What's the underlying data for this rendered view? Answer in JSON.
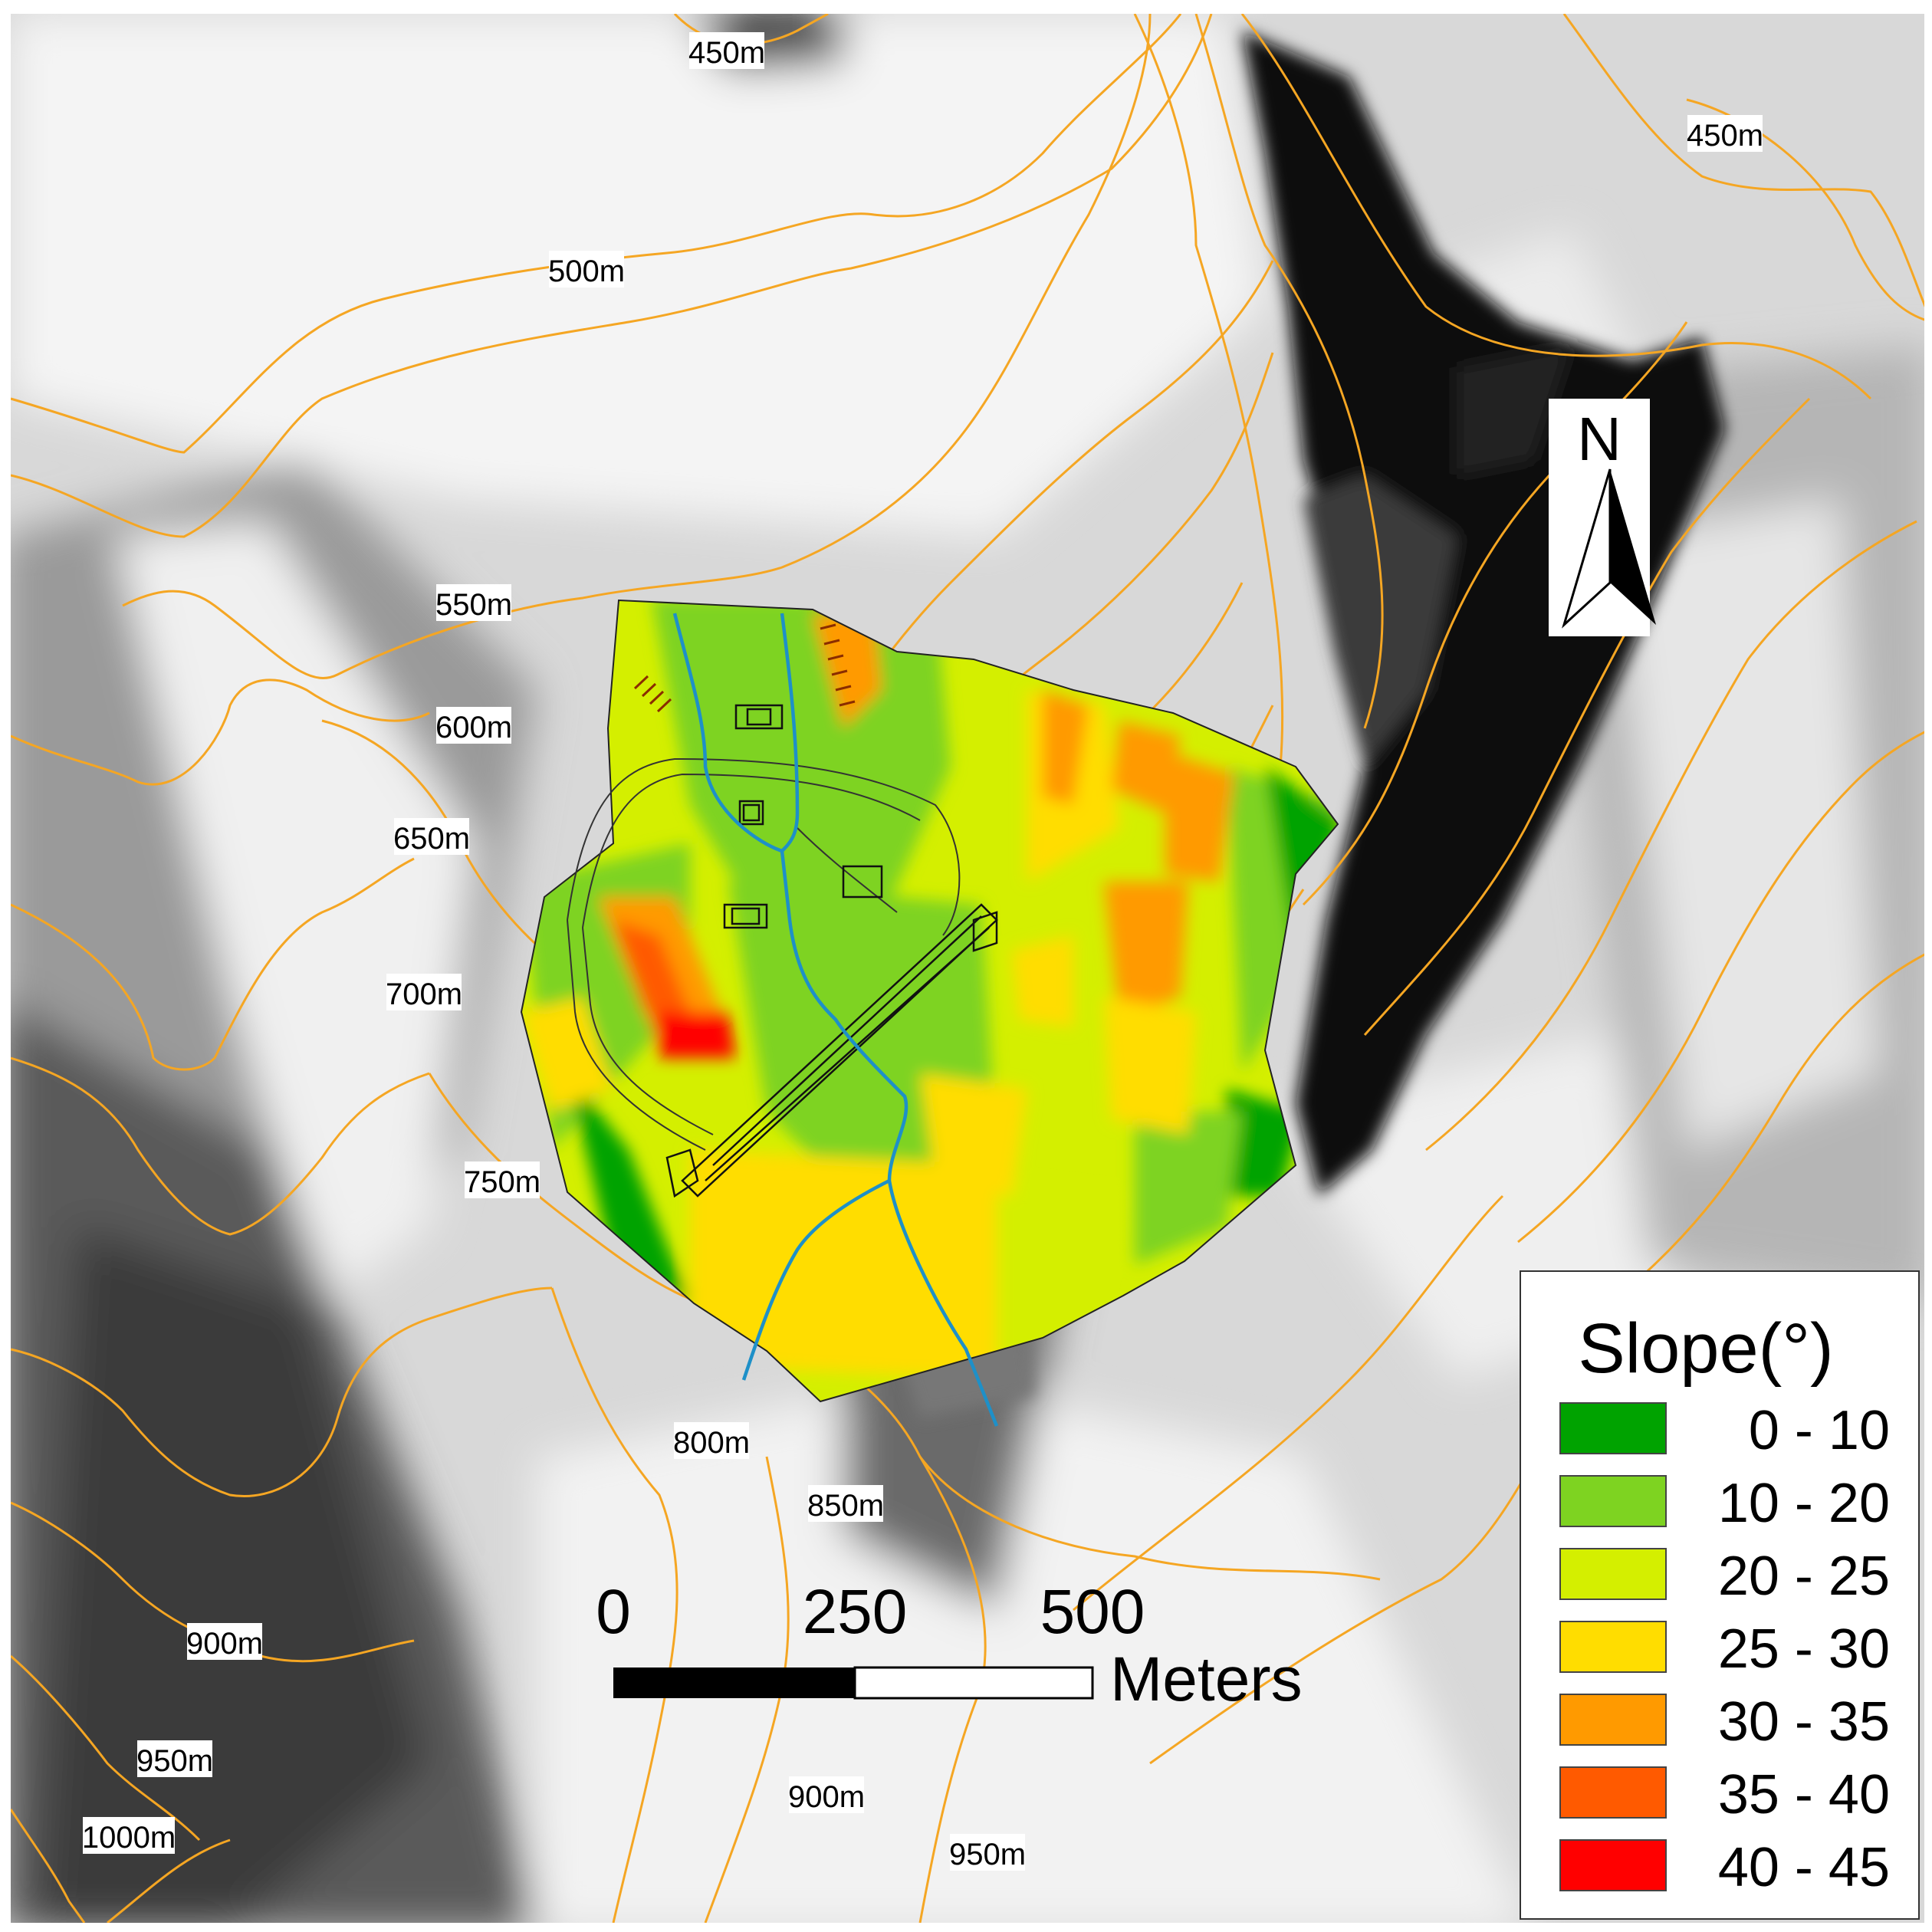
{
  "contour_labels": [
    "450m",
    "450m",
    "500m",
    "550m",
    "600m",
    "650m",
    "700m",
    "750m",
    "800m",
    "850m",
    "900m",
    "900m",
    "950m",
    "950m",
    "1000m"
  ],
  "north_arrow": {
    "label": "N"
  },
  "scale_bar": {
    "ticks": [
      "0",
      "250",
      "500"
    ],
    "unit": "Meters"
  },
  "legend": {
    "title": "Slope(°)",
    "classes": [
      {
        "label": "0 - 10",
        "color": "#00a300"
      },
      {
        "label": "10 - 20",
        "color": "#7ed321"
      },
      {
        "label": "20 - 25",
        "color": "#d4ef00"
      },
      {
        "label": "25 - 30",
        "color": "#ffdd00"
      },
      {
        "label": "30 - 35",
        "color": "#ff9a00"
      },
      {
        "label": "35 - 40",
        "color": "#ff5a00"
      },
      {
        "label": "40 - 45",
        "color": "#ff0000"
      }
    ]
  },
  "colors": {
    "contour": "#f5a623",
    "stream": "#1e90c8"
  }
}
